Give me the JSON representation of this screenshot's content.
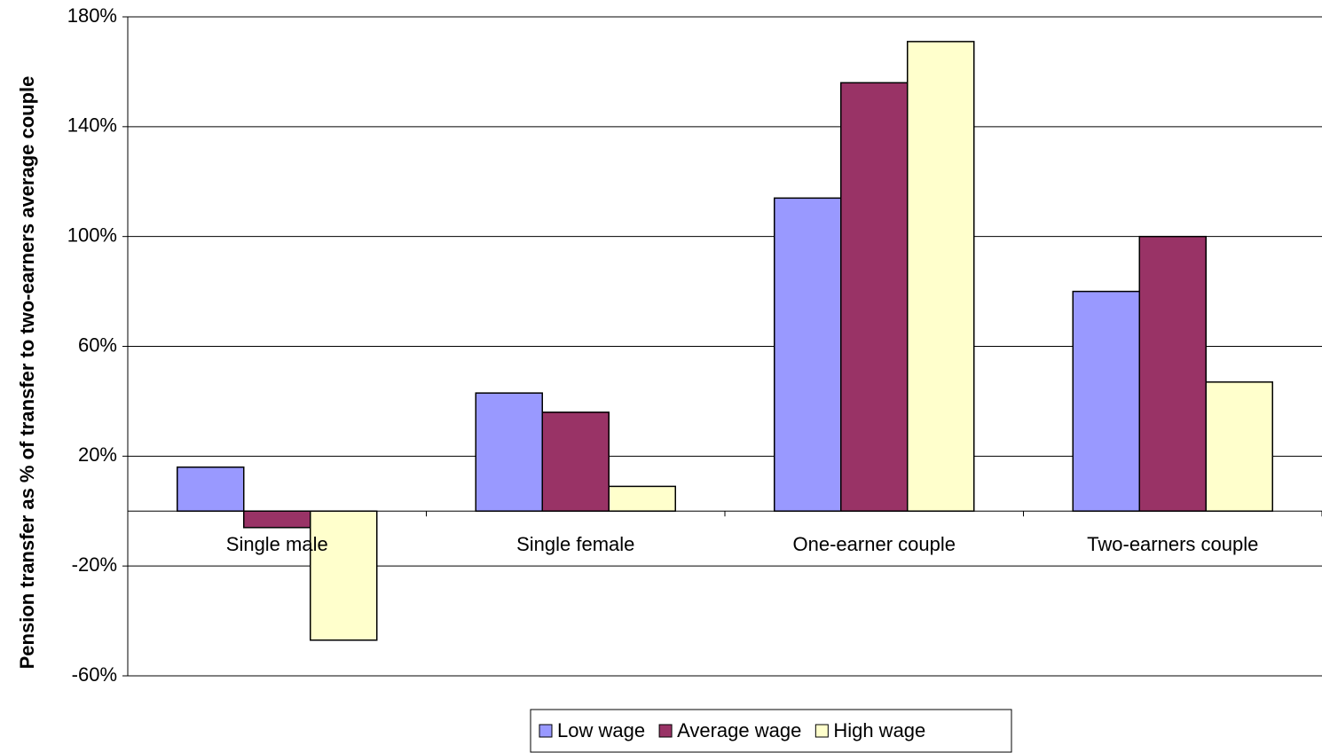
{
  "chart_data": {
    "type": "bar",
    "y_label": "Pension transfer as % of transfer to two-earners average couple",
    "categories": [
      "Single male",
      "Single female",
      "One-earner couple",
      "Two-earners couple"
    ],
    "series": [
      {
        "name": "Low wage",
        "color": "#9999ff",
        "values": [
          16,
          43,
          114,
          80
        ]
      },
      {
        "name": "Average wage",
        "color": "#993366",
        "values": [
          -6,
          36,
          156,
          100
        ]
      },
      {
        "name": "High wage",
        "color": "#ffffcc",
        "values": [
          -47,
          9,
          171,
          47
        ]
      }
    ],
    "ylim": [
      -60,
      180
    ],
    "yticks": [
      {
        "value": -60,
        "label": "-60%"
      },
      {
        "value": -20,
        "label": "-20%"
      },
      {
        "value": 20,
        "label": "20%"
      },
      {
        "value": 60,
        "label": "60%"
      },
      {
        "value": 100,
        "label": "100%"
      },
      {
        "value": 140,
        "label": "140%"
      },
      {
        "value": 180,
        "label": "180%"
      }
    ],
    "grid": true
  }
}
